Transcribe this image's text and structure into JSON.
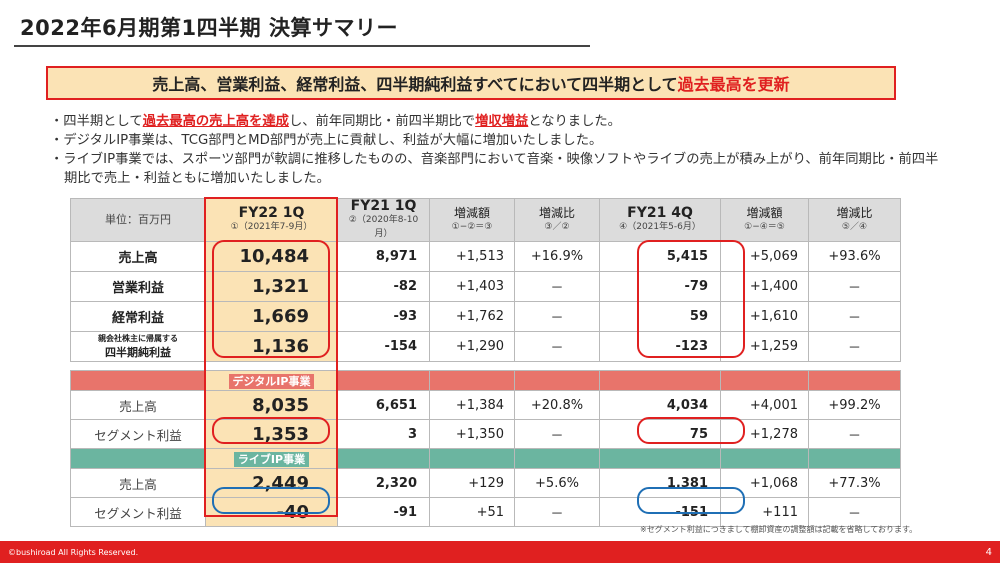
{
  "title": "2022年6月期第1四半期 決算サマリー",
  "banner": {
    "part1": "売上高、営業利益、経常利益、四半期純利益すべてにおいて四半期として",
    "part2": "過去最高を更新"
  },
  "bullets": [
    {
      "pre": "・四半期として",
      "em1": "過去最高の売上高を達成",
      "mid": "し、前年同期比・前四半期比で",
      "em2": "増収増益",
      "post": "となりました。"
    },
    {
      "text": "・デジタルIP事業は、TCG部門とMD部門が売上に貢献し、利益が大幅に増加いたしました。"
    },
    {
      "text": "・ライブIP事業では、スポーツ部門が軟調に推移したものの、音楽部門において音楽・映像ソフトやライブの売上が積み上がり、前年同期比・前四半期比で売上・利益ともに増加いたしました。"
    }
  ],
  "table": {
    "unit": "単位：百万円",
    "headers": [
      {
        "h": "FY22 1Q",
        "s": "①（2021年7-9月）"
      },
      {
        "h": "FY21 1Q",
        "s": "②（2020年8-10月）"
      },
      {
        "h": "増減額",
        "s": "①−②＝③"
      },
      {
        "h": "増減比",
        "s": "③／②"
      },
      {
        "h": "FY21 4Q",
        "s": "④（2021年5-6月）"
      },
      {
        "h": "増減額",
        "s": "①−④＝⑤"
      },
      {
        "h": "増減比",
        "s": "⑤／④"
      }
    ],
    "rows": [
      {
        "label": "売上高",
        "v": [
          "10,484",
          "8,971",
          "+1,513",
          "+16.9%",
          "5,415",
          "+5,069",
          "+93.6%"
        ]
      },
      {
        "label": "営業利益",
        "v": [
          "1,321",
          "-82",
          "+1,403",
          "－",
          "-79",
          "+1,400",
          "－"
        ]
      },
      {
        "label": "経常利益",
        "v": [
          "1,669",
          "-93",
          "+1,762",
          "－",
          "59",
          "+1,610",
          "－"
        ]
      },
      {
        "label_small": "親会社株主に帰属する",
        "label": "四半期純利益",
        "v": [
          "1,136",
          "-154",
          "+1,290",
          "－",
          "-123",
          "+1,259",
          "－"
        ]
      }
    ]
  },
  "segments": {
    "digital": {
      "name": "デジタルIP事業",
      "rows": [
        {
          "label": "売上高",
          "v": [
            "8,035",
            "6,651",
            "+1,384",
            "+20.8%",
            "4,034",
            "+4,001",
            "+99.2%"
          ]
        },
        {
          "label": "セグメント利益",
          "v": [
            "1,353",
            "3",
            "+1,350",
            "－",
            "75",
            "+1,278",
            "－"
          ]
        }
      ]
    },
    "live": {
      "name": "ライブIP事業",
      "rows": [
        {
          "label": "売上高",
          "v": [
            "2,449",
            "2,320",
            "+129",
            "+5.6%",
            "1,381",
            "+1,068",
            "+77.3%"
          ]
        },
        {
          "label": "セグメント利益",
          "v": [
            "-40",
            "-91",
            "+51",
            "－",
            "-151",
            "+111",
            "－"
          ]
        }
      ]
    }
  },
  "note": "※セグメント利益につきまして棚卸資産の調整額は記載を省略しております。",
  "footer": {
    "copyright": "©bushiroad All Rights Reserved.",
    "page": "4"
  }
}
